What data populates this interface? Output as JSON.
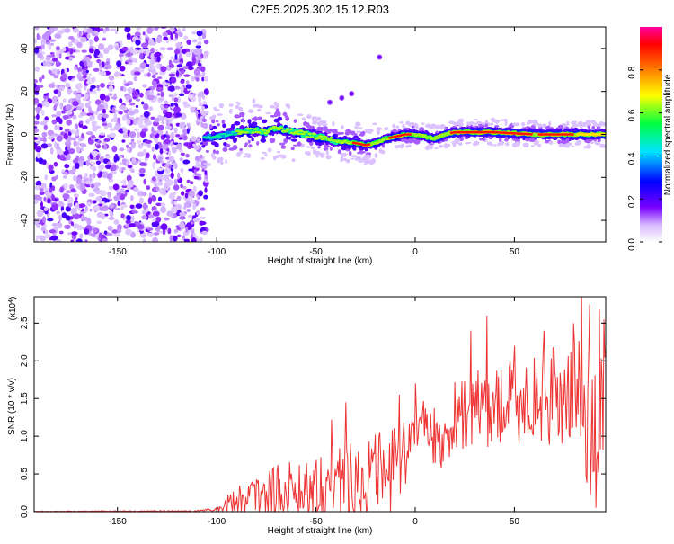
{
  "title": "C2E5.2025.302.15.12.R03",
  "spectrogram": {
    "type": "heatmap",
    "xlabel": "Height of straight line (km)",
    "ylabel": "Frequency (Hz)",
    "xlim": [
      -192,
      96
    ],
    "ylim": [
      -50,
      50
    ],
    "xticks": [
      -150,
      -100,
      -50,
      0,
      50
    ],
    "xtick_labels": [
      "-150",
      "-100",
      "-50",
      "0",
      "50"
    ],
    "yticks": [
      -40,
      -20,
      0,
      20,
      40
    ],
    "ytick_labels": [
      "-40",
      "-20",
      "0",
      "20",
      "40"
    ],
    "noise_region": [
      -192,
      -105
    ],
    "signal_track": {
      "x": [
        -110,
        -100,
        -90,
        -80,
        -75,
        -70,
        -60,
        -50,
        -40,
        -30,
        -25,
        -20,
        -15,
        -10,
        -5,
        0,
        5,
        10,
        15,
        20,
        40,
        60,
        80,
        96
      ],
      "freq": [
        -2,
        -1,
        1,
        2,
        1,
        3,
        1,
        -1,
        -3,
        -4,
        -5,
        -4,
        -2,
        -1,
        0,
        0,
        -1,
        -2,
        0,
        1,
        1,
        0,
        0,
        0
      ]
    },
    "isolated_blobs": [
      [
        -18,
        36
      ],
      [
        -32,
        19
      ],
      [
        -37,
        17
      ],
      [
        -43,
        15
      ]
    ]
  },
  "colorbar": {
    "label": "Normalized spectral amplitude",
    "range": [
      0,
      1
    ],
    "ticks": [
      0.0,
      0.2,
      0.4,
      0.6,
      0.8
    ],
    "tick_labels": [
      "0.0",
      "0.2",
      "0.4",
      "0.6",
      "0.8"
    ]
  },
  "snr": {
    "type": "line",
    "xlabel": "Height of straight line (km)",
    "ylabel": "SNR (10 * v/v)",
    "exponent_label": "(x10",
    "exponent_power": "4",
    "exponent_close": ")",
    "xlim": [
      -192,
      96
    ],
    "ylim": [
      0,
      2.85
    ],
    "xticks": [
      -150,
      -100,
      -50,
      0,
      50
    ],
    "xtick_labels": [
      "-150",
      "-100",
      "-50",
      "0",
      "50"
    ],
    "yticks": [
      0.0,
      0.5,
      1.0,
      1.5,
      2.0,
      2.5
    ],
    "ytick_labels": [
      "0.0",
      "0.5",
      "1.0",
      "1.5",
      "2.0",
      "2.5"
    ],
    "color": "#ee3333",
    "envelope": {
      "x": [
        -192,
        -110,
        -100,
        -95,
        -90,
        -85,
        -80,
        -70,
        -60,
        -50,
        -40,
        -30,
        -20,
        -10,
        -5,
        0,
        5,
        10,
        15,
        20,
        25,
        30,
        40,
        50,
        60,
        70,
        80,
        85,
        88,
        90,
        92,
        94,
        96
      ],
      "base": [
        0.005,
        0.01,
        0.03,
        0.1,
        0.18,
        0.22,
        0.25,
        0.3,
        0.35,
        0.4,
        0.45,
        0.5,
        0.55,
        0.6,
        0.7,
        1.3,
        1.2,
        1.0,
        1.05,
        1.3,
        1.35,
        1.4,
        1.45,
        1.5,
        1.55,
        1.6,
        1.65,
        1.5,
        1.3,
        1.2,
        1.4,
        1.6,
        1.7
      ],
      "amp": [
        0.003,
        0.01,
        0.03,
        0.12,
        0.2,
        0.25,
        0.3,
        0.35,
        0.4,
        0.45,
        0.5,
        0.55,
        0.55,
        0.6,
        0.6,
        0.4,
        0.4,
        0.4,
        0.45,
        0.5,
        0.5,
        0.55,
        0.55,
        0.6,
        0.6,
        0.65,
        0.7,
        0.9,
        1.0,
        1.0,
        0.9,
        0.8,
        0.8
      ]
    },
    "peaks": [
      [
        -42,
        1.22
      ],
      [
        -35,
        1.45
      ],
      [
        -8,
        1.55
      ],
      [
        0,
        1.7
      ],
      [
        28,
        2.4
      ],
      [
        36,
        2.6
      ],
      [
        50,
        2.2
      ],
      [
        65,
        2.4
      ],
      [
        80,
        2.5
      ],
      [
        84,
        2.85
      ],
      [
        87,
        1.6
      ],
      [
        88,
        2.75
      ],
      [
        91,
        0.05
      ],
      [
        93,
        2.68
      ],
      [
        95,
        2.55
      ]
    ]
  }
}
